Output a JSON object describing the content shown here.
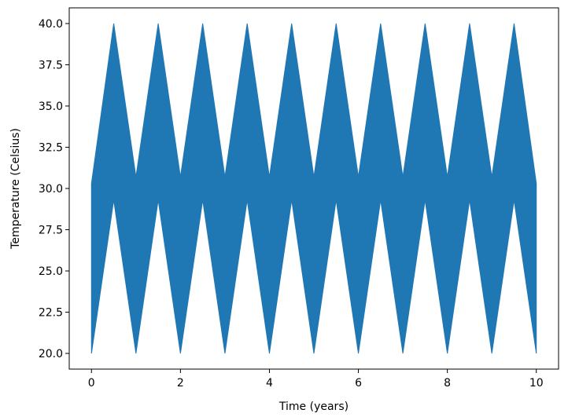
{
  "chart_data": {
    "type": "area",
    "title": "",
    "xlabel": "Time (years)",
    "ylabel": "Temperature (Celsius)",
    "xlim": [
      -0.5,
      10.5
    ],
    "ylim": [
      19.05,
      40.95
    ],
    "x_ticks": [
      0,
      2,
      4,
      6,
      8,
      10
    ],
    "x_tick_labels": [
      "0",
      "2",
      "4",
      "6",
      "8",
      "10"
    ],
    "y_ticks": [
      20.0,
      22.5,
      25.0,
      27.5,
      30.0,
      32.5,
      35.0,
      37.5,
      40.0
    ],
    "y_tick_labels": [
      "20.0",
      "22.5",
      "25.0",
      "27.5",
      "30.0",
      "32.5",
      "35.0",
      "37.5",
      "40.0"
    ],
    "grid": false,
    "legend": "none",
    "series": [
      {
        "color": "#1f77b4",
        "x": [
          0,
          0.5,
          1,
          1.5,
          2,
          2.5,
          3,
          3.5,
          4,
          4.5,
          5,
          5.5,
          6,
          6.5,
          7,
          7.5,
          8,
          8.5,
          9,
          9.5,
          10
        ],
        "upper": [
          30.3,
          40,
          30.7,
          40,
          30.7,
          40,
          30.7,
          40,
          30.7,
          40,
          30.7,
          40,
          30.7,
          40,
          30.7,
          40,
          30.7,
          40,
          30.7,
          40,
          30.3
        ],
        "lower": [
          20,
          29.3,
          20,
          29.3,
          20,
          29.3,
          20,
          29.3,
          20,
          29.3,
          20,
          29.3,
          20,
          29.3,
          20,
          29.3,
          20,
          29.3,
          20,
          29.3,
          20
        ]
      }
    ]
  }
}
